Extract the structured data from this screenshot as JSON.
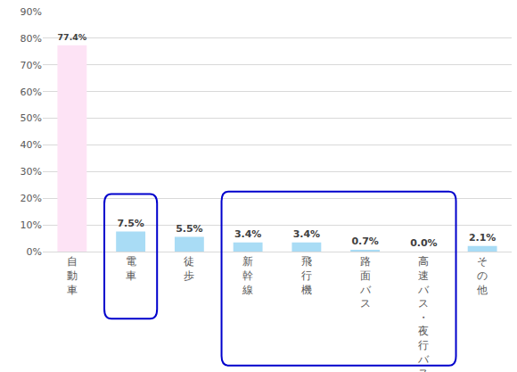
{
  "chart_data": {
    "type": "bar",
    "categories": [
      "自動車",
      "電車",
      "徒歩",
      "新幹線",
      "飛行機",
      "路面バス",
      "高速バス・夜行バス",
      "その他"
    ],
    "values": [
      77.4,
      7.5,
      5.5,
      3.4,
      3.4,
      0.7,
      0.0,
      2.1
    ],
    "value_labels": [
      "77.4%",
      "7.5%",
      "5.5%",
      "3.4%",
      "3.4%",
      "0.7%",
      "0.0%",
      "2.1%"
    ],
    "colors": [
      "#fde3f5",
      "#a9dcf5",
      "#a9dcf5",
      "#a9dcf5",
      "#a9dcf5",
      "#a9dcf5",
      "#a9dcf5",
      "#a9dcf5"
    ],
    "ylim": [
      0,
      90
    ],
    "yticks": [
      {
        "value": 0,
        "label": "0%"
      },
      {
        "value": 10,
        "label": "10%"
      },
      {
        "value": 20,
        "label": "20%"
      },
      {
        "value": 30,
        "label": "30%"
      },
      {
        "value": 40,
        "label": "40%"
      },
      {
        "value": 50,
        "label": "50%"
      },
      {
        "value": 60,
        "label": "60%"
      },
      {
        "value": 70,
        "label": "70%"
      },
      {
        "value": 80,
        "label": "80%"
      },
      {
        "value": 90,
        "label": "90%"
      }
    ],
    "grid": true,
    "data_labels": true
  }
}
